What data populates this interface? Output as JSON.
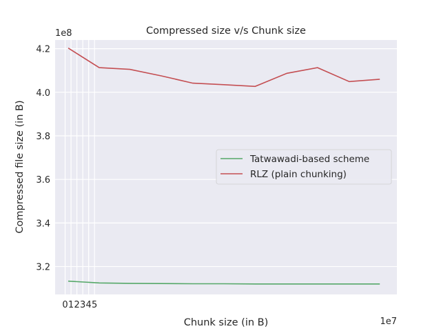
{
  "chart_data": {
    "type": "line",
    "title": "Compressed size v/s Chunk size",
    "xlabel": "Chunk size (in B)",
    "ylabel": "Compressed file size (in B)",
    "x_offset_label": "1e7",
    "y_offset_label": "1e8",
    "xlim": [
      -1.7,
      56.4
    ],
    "ylim": [
      3.072,
      4.24
    ],
    "x_ticks": [
      0,
      1,
      2,
      3,
      4,
      5
    ],
    "x_tick_labels": [
      "0",
      "1",
      "2",
      "3",
      "4",
      "5"
    ],
    "y_ticks": [
      3.2,
      3.4,
      3.6,
      3.8,
      4.0,
      4.2
    ],
    "y_tick_labels": [
      "3.2",
      "3.4",
      "3.6",
      "3.8",
      "4.0",
      "4.2"
    ],
    "grid": true,
    "legend_position": "center-right",
    "x": [
      0.52,
      5.8,
      11.0,
      16.4,
      21.7,
      27.0,
      32.3,
      37.7,
      42.9,
      48.3,
      53.5
    ],
    "series": [
      {
        "name": "Tatwawadi-based scheme",
        "color": "#55a868",
        "values": [
          3.133,
          3.125,
          3.123,
          3.122,
          3.121,
          3.121,
          3.12,
          3.12,
          3.12,
          3.12,
          3.12
        ]
      },
      {
        "name": "RLZ (plain chunking)",
        "color": "#c44e52",
        "values": [
          4.203,
          4.113,
          4.105,
          4.075,
          4.042,
          4.035,
          4.027,
          4.087,
          4.113,
          4.049,
          4.06
        ]
      }
    ]
  }
}
